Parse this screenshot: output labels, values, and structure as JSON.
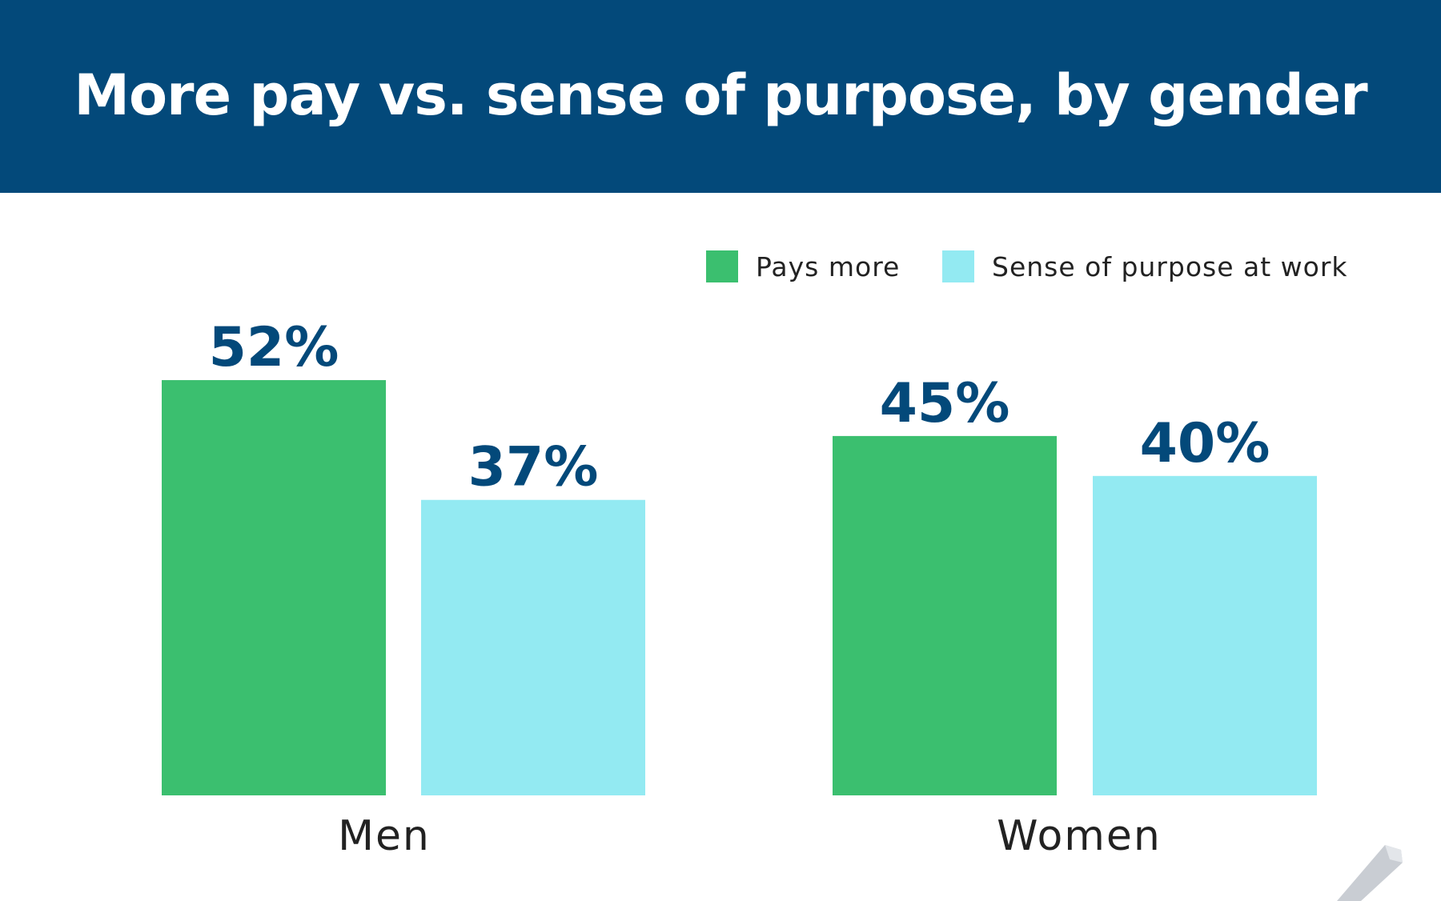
{
  "header": {
    "title": "More pay vs. sense of purpose, by gender"
  },
  "chart_data": {
    "type": "bar",
    "title": "More pay vs. sense of purpose, by gender",
    "categories": [
      "Men",
      "Women"
    ],
    "series": [
      {
        "name": "Pays more",
        "values": [
          52,
          45
        ],
        "labels": [
          "52%",
          "45%"
        ],
        "color": "#3bbf6f"
      },
      {
        "name": "Sense of purpose at work",
        "values": [
          37,
          40
        ],
        "labels": [
          "37%",
          "40%"
        ],
        "color": "#93eaf2"
      }
    ],
    "ylim": [
      0,
      52
    ],
    "grid": false,
    "legend": "top-right",
    "value_label_color": "#03497a",
    "category_label_color": "#222222"
  }
}
